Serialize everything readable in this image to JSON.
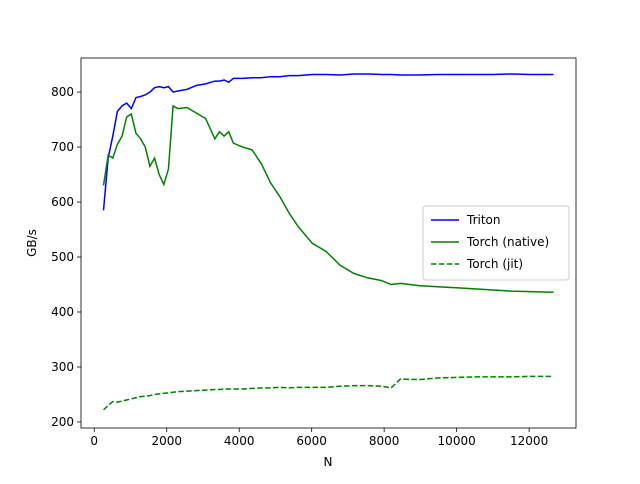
{
  "chart_data": {
    "type": "line",
    "xlabel": "N",
    "ylabel": "GB/s",
    "x": [
      256,
      384,
      512,
      640,
      768,
      896,
      1024,
      1152,
      1280,
      1408,
      1536,
      1664,
      1792,
      1920,
      2048,
      2176,
      2304,
      2560,
      2816,
      3072,
      3328,
      3456,
      3584,
      3712,
      3840,
      4096,
      4352,
      4608,
      4864,
      5120,
      5376,
      5632,
      6016,
      6400,
      6784,
      7168,
      7552,
      7936,
      8192,
      8448,
      8960,
      9472,
      9984,
      10496,
      11008,
      11520,
      12032,
      12672
    ],
    "series": [
      {
        "name": "Triton",
        "color": "#0000ff",
        "linestyle": "solid",
        "values": [
          585,
          680,
          720,
          765,
          775,
          780,
          770,
          790,
          792,
          795,
          800,
          808,
          810,
          808,
          810,
          800,
          802,
          805,
          812,
          815,
          820,
          820,
          822,
          818,
          825,
          825,
          826,
          826,
          828,
          828,
          830,
          830,
          832,
          832,
          831,
          833,
          833,
          832,
          832,
          831,
          831,
          832,
          832,
          832,
          832,
          833,
          832,
          832
        ]
      },
      {
        "name": "Torch (native)",
        "color": "#008000",
        "linestyle": "solid",
        "values": [
          630,
          685,
          680,
          705,
          720,
          755,
          760,
          725,
          715,
          700,
          665,
          680,
          650,
          632,
          660,
          775,
          770,
          772,
          762,
          752,
          715,
          728,
          720,
          728,
          707,
          700,
          695,
          670,
          635,
          610,
          580,
          555,
          525,
          510,
          485,
          470,
          462,
          457,
          450,
          452,
          448,
          446,
          444,
          442,
          440,
          438,
          437,
          436
        ]
      },
      {
        "name": "Torch (jit)",
        "color": "#008000",
        "linestyle": "dashed",
        "values": [
          222,
          230,
          237,
          236,
          238,
          240,
          242,
          244,
          246,
          247,
          248,
          250,
          251,
          252,
          253,
          254,
          255,
          256,
          257,
          258,
          259,
          259,
          260,
          260,
          260,
          260,
          261,
          262,
          262,
          263,
          262,
          263,
          263,
          263,
          265,
          266,
          266,
          265,
          262,
          278,
          277,
          280,
          281,
          282,
          282,
          282,
          283,
          283
        ]
      }
    ],
    "xlim": [
      -365,
      13293
    ],
    "ylim": [
      189,
      862
    ],
    "xticks": [
      0,
      2000,
      4000,
      6000,
      8000,
      10000,
      12000
    ],
    "yticks": [
      200,
      300,
      400,
      500,
      600,
      700,
      800
    ],
    "legend": "center right"
  }
}
